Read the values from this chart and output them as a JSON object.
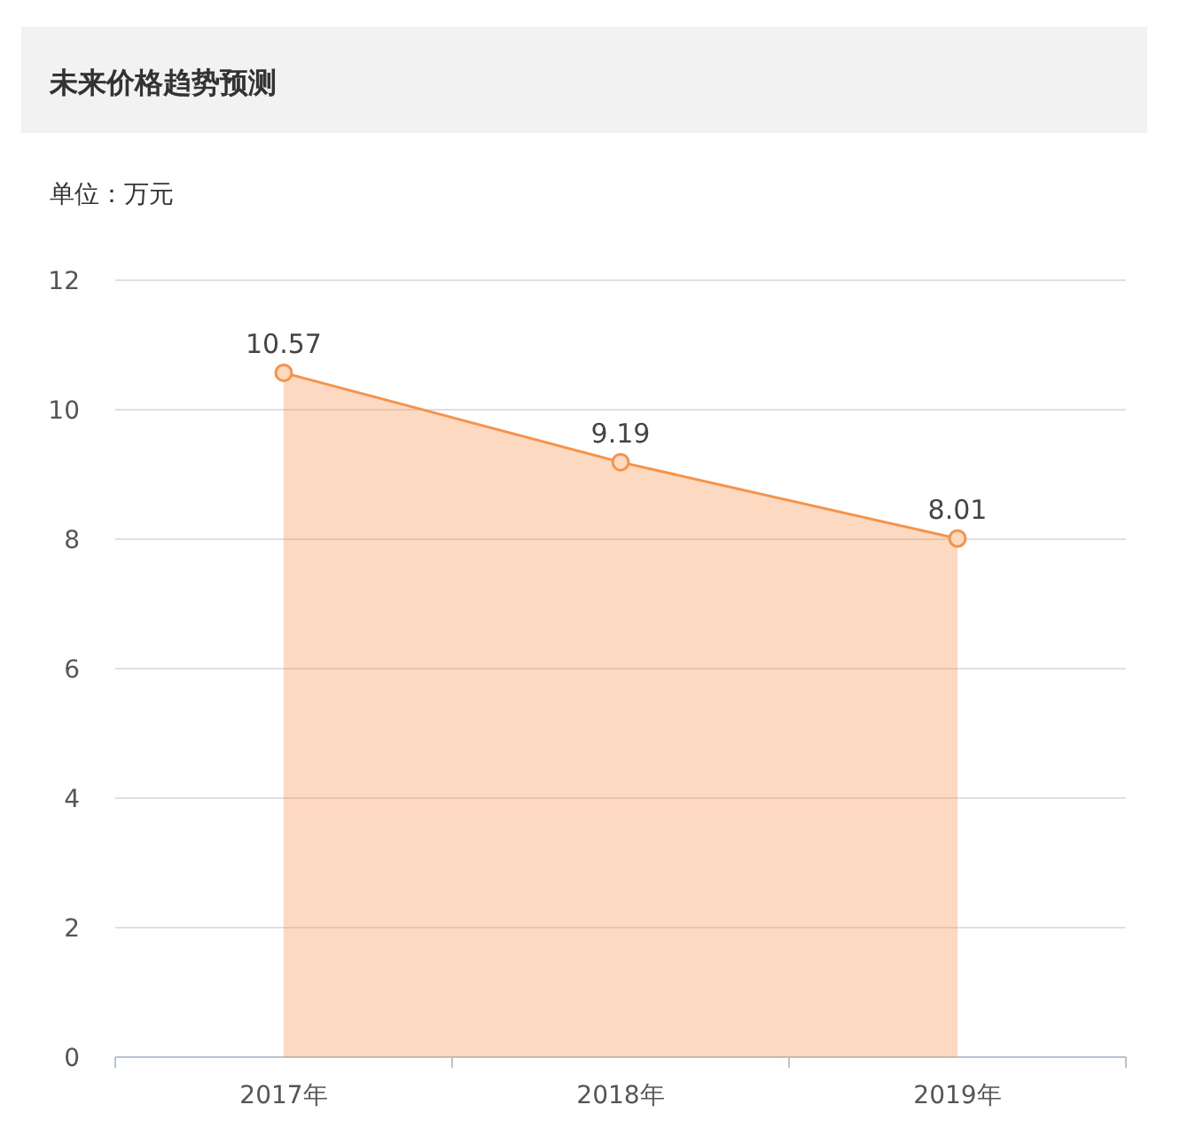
{
  "chart_data": {
    "type": "area",
    "title": "未来价格趋势预测",
    "subtitle": "单位：万元",
    "categories": [
      "2017年",
      "2018年",
      "2019年"
    ],
    "values": [
      10.57,
      9.19,
      8.01
    ],
    "color": "#f5934a",
    "ylim": [
      0,
      12
    ],
    "yticks": [
      0,
      2,
      4,
      6,
      8,
      10,
      12
    ],
    "grid": "y",
    "marker": "circle",
    "data_labels": true
  }
}
